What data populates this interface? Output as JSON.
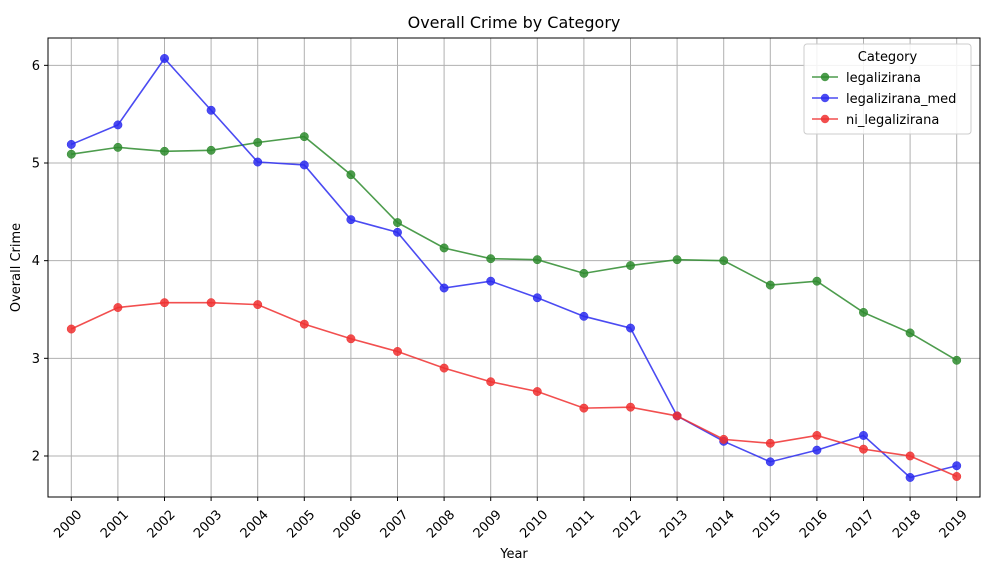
{
  "chart_data": {
    "type": "line",
    "title": "Overall Crime by Category",
    "xlabel": "Year",
    "ylabel": "Overall Crime",
    "x": [
      "2000",
      "2001",
      "2002",
      "2003",
      "2004",
      "2005",
      "2006",
      "2007",
      "2008",
      "2009",
      "2010",
      "2011",
      "2012",
      "2013",
      "2014",
      "2015",
      "2016",
      "2017",
      "2018",
      "2019"
    ],
    "y_ticks": [
      2,
      3,
      4,
      5,
      6
    ],
    "ylim": [
      1.58,
      6.28
    ],
    "grid": true,
    "legend": {
      "title": "Category",
      "placement": "top-right"
    },
    "series": [
      {
        "name": "legalizirana",
        "color": "#2e8b2e",
        "values": [
          5.09,
          5.16,
          5.12,
          5.13,
          5.21,
          5.27,
          4.88,
          4.39,
          4.13,
          4.02,
          4.01,
          3.87,
          3.95,
          4.01,
          4.0,
          3.75,
          3.79,
          3.47,
          3.26,
          2.98
        ]
      },
      {
        "name": "legalizirana_med",
        "color": "#2b2bf0",
        "values": [
          5.19,
          5.39,
          6.07,
          5.54,
          5.01,
          4.98,
          4.42,
          4.29,
          3.72,
          3.79,
          3.62,
          3.43,
          3.31,
          2.41,
          2.15,
          1.94,
          2.06,
          2.21,
          1.78,
          1.9
        ]
      },
      {
        "name": "ni_legalizirana",
        "color": "#f03030",
        "values": [
          3.3,
          3.52,
          3.57,
          3.57,
          3.55,
          3.35,
          3.2,
          3.07,
          2.9,
          2.76,
          2.66,
          2.49,
          2.5,
          2.41,
          2.17,
          2.13,
          2.21,
          2.07,
          2.0,
          1.79
        ]
      }
    ]
  }
}
